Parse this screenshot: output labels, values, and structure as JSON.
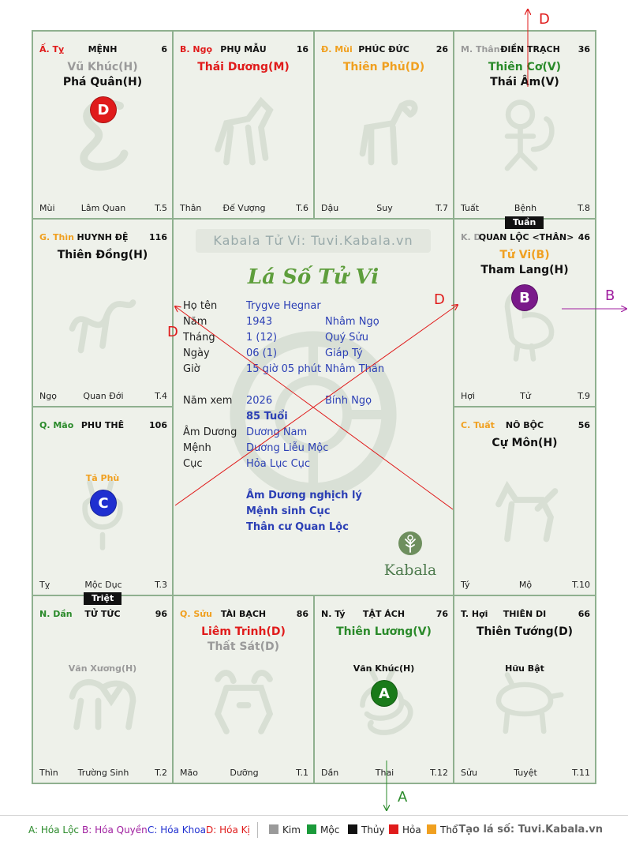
{
  "palette": {
    "green": "#2a8a2a",
    "red": "#e01b1b",
    "orange": "#f0a020",
    "gray": "#9a9a9a",
    "purple": "#a020a0",
    "blue": "#1f2fd0",
    "dark": "#111111"
  },
  "site_banner": "Kabala Tử Vi: Tuvi.Kabala.vn",
  "chart_title": "Lá Số Tử Vi",
  "brand": "Kabala",
  "palaces": {
    "ty_snake": {
      "can": "Ấ. Tỵ",
      "name": "MỆNH",
      "num": "6",
      "stars": [
        "Vũ Khúc(H)",
        "Phá Quân(H)"
      ],
      "bl": "Mùi",
      "bc": "Lâm Quan",
      "br": "T.5"
    },
    "ngo": {
      "can": "B. Ngọ",
      "name": "PHỤ MẪU",
      "num": "16",
      "stars": [
        "Thái Dương(M)"
      ],
      "bl": "Thân",
      "bc": "Đế Vượng",
      "br": "T.6"
    },
    "mui": {
      "can": "Đ. Mùi",
      "name": "PHÚC ĐỨC",
      "num": "26",
      "stars": [
        "Thiên Phủ(D)"
      ],
      "bl": "Dậu",
      "bc": "Suy",
      "br": "T.7"
    },
    "than": {
      "can": "M. Thân",
      "name": "ĐIỀN TRẠCH",
      "num": "36",
      "stars": [
        "Thiên Cơ(V)",
        "Thái Âm(V)"
      ],
      "bl": "Tuất",
      "bc": "Bệnh",
      "br": "T.8"
    },
    "thin": {
      "can": "G. Thìn",
      "name": "HUYNH ĐỆ",
      "num": "116",
      "stars": [
        "Thiên Đồng(H)"
      ],
      "bl": "Ngọ",
      "bc": "Quan Đới",
      "br": "T.4"
    },
    "dau": {
      "can": "K. D",
      "name": "QUAN LỘC <THÂN>",
      "num": "46",
      "stars": [
        "Tử Vi(B)",
        "Tham Lang(H)"
      ],
      "bl": "Hợi",
      "bc": "Tử",
      "br": "T.9"
    },
    "mao": {
      "can": "Q. Mão",
      "name": "PHU THÊ",
      "num": "106",
      "minor": [
        "Tả Phù"
      ],
      "bl": "Tỵ",
      "bc": "Mộc Dục",
      "br": "T.3"
    },
    "tuat": {
      "can": "C. Tuất",
      "name": "NÔ BỘC",
      "num": "56",
      "stars": [
        "Cự Môn(H)"
      ],
      "bl": "Tý",
      "bc": "Mộ",
      "br": "T.10"
    },
    "dan": {
      "can": "N. Dần",
      "name": "TỬ TỨC",
      "num": "96",
      "minor": [
        "Văn Xương(H)"
      ],
      "bl": "Thìn",
      "bc": "Trường Sinh",
      "br": "T.2"
    },
    "suu": {
      "can": "Q. Sửu",
      "name": "TÀI BẠCH",
      "num": "86",
      "stars": [
        "Liêm Trinh(D)",
        "Thất Sát(D)"
      ],
      "bl": "Mão",
      "bc": "Dưỡng",
      "br": "T.1"
    },
    "ty_rat": {
      "can": "N. Tý",
      "name": "TẬT ÁCH",
      "num": "76",
      "stars": [
        "Thiên Lương(V)"
      ],
      "minor": [
        "Văn Khúc(H)"
      ],
      "bl": "Dần",
      "bc": "Thai",
      "br": "T.12"
    },
    "hoi": {
      "can": "T. Hợi",
      "name": "THIÊN DI",
      "num": "66",
      "stars": [
        "Thiên Tướng(D)"
      ],
      "minor": [
        "Hữu Bật"
      ],
      "bl": "Sửu",
      "bc": "Tuyệt",
      "br": "T.11"
    }
  },
  "tags": {
    "tuan": "Tuần",
    "triet": "Triệt"
  },
  "badges": {
    "a": "A",
    "b": "B",
    "c": "C",
    "d": "D"
  },
  "arrows": {
    "a": "A",
    "b": "B",
    "d": "D"
  },
  "info": {
    "ho_ten_label": "Họ tên",
    "ho_ten": "Trygve Hegnar",
    "nam_label": "Năm",
    "nam": "1943",
    "nam_can_chi": "Nhâm Ngọ",
    "thang_label": "Tháng",
    "thang": "1  (12)",
    "thang_can_chi": "Quý Sửu",
    "ngay_label": "Ngày",
    "ngay": "06  (1)",
    "ngay_can_chi": "Giáp Tý",
    "gio_label": "Giờ",
    "gio": "15 giờ 05 phút",
    "gio_can_chi": "Nhâm Thân",
    "nam_xem_label": "Năm xem",
    "nam_xem": "2026",
    "nam_xem_can_chi": "Bính Ngọ",
    "tuoi": "85 Tuổi",
    "am_duong_label": "Âm Dương",
    "am_duong": "Dương Nam",
    "menh_label": "Mệnh",
    "menh": "Dương Liễu Mộc",
    "cuc_label": "Cục",
    "cuc": "Hỏa Lục Cục",
    "note1": "Âm Dương nghịch lý",
    "note2": "Mệnh sinh Cục",
    "note3": "Thân cư Quan Lộc"
  },
  "legend": {
    "a": "A: Hóa Lộc",
    "b": "B: Hóa Quyền",
    "c": "C: Hóa Khoa",
    "d": "D: Hóa Kị",
    "kim": "Kim",
    "moc": "Mộc",
    "thuy": "Thủy",
    "hoa": "Hỏa",
    "tho": "Thổ",
    "credit": "Tạo lá số: Tuvi.Kabala.vn"
  }
}
